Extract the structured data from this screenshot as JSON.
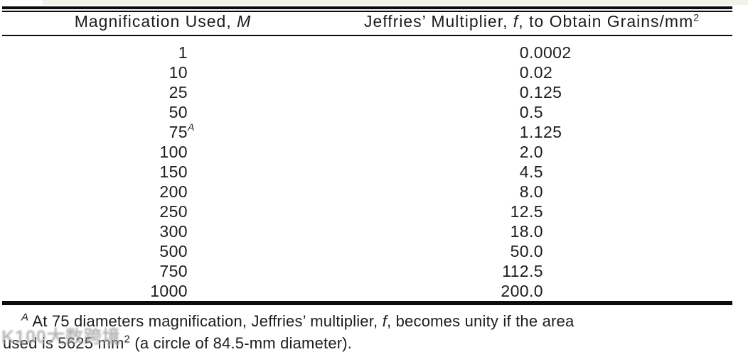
{
  "page": {
    "background": "#ffffff",
    "text_color": "#1c1c1e",
    "rule_color": "#0c0c0c",
    "top_tint_color": "#e7e7d3"
  },
  "table": {
    "header": {
      "col1_segments": [
        {
          "t": "Magnification Used, "
        },
        {
          "t": "M",
          "style": "italic"
        }
      ],
      "col2_segments": [
        {
          "t": "Jeffries’ Multiplier, "
        },
        {
          "t": "f",
          "style": "italic"
        },
        {
          "t": ", to Obtain Grains/mm"
        },
        {
          "t": "2",
          "style": "sup"
        }
      ]
    },
    "rows": [
      {
        "m": "1",
        "m_sup": "",
        "f": "0.0002"
      },
      {
        "m": "10",
        "m_sup": "",
        "f": "0.02"
      },
      {
        "m": "25",
        "m_sup": "",
        "f": "0.125"
      },
      {
        "m": "50",
        "m_sup": "",
        "f": "0.5"
      },
      {
        "m": "75",
        "m_sup": "A",
        "f": "1.125"
      },
      {
        "m": "100",
        "m_sup": "",
        "f": "2.0"
      },
      {
        "m": "150",
        "m_sup": "",
        "f": "4.5"
      },
      {
        "m": "200",
        "m_sup": "",
        "f": "8.0"
      },
      {
        "m": "250",
        "m_sup": "",
        "f": "12.5"
      },
      {
        "m": "300",
        "m_sup": "",
        "f": "18.0"
      },
      {
        "m": "500",
        "m_sup": "",
        "f": "50.0"
      },
      {
        "m": "750",
        "m_sup": "",
        "f": "112.5"
      },
      {
        "m": "1000",
        "m_sup": "",
        "f": "200.0"
      }
    ]
  },
  "footnote": {
    "lines": [
      {
        "segments": [
          {
            "t": "A",
            "style": "sup-italic"
          },
          {
            "t": " At 75 diameters magnification, Jeffries’ multiplier, "
          },
          {
            "t": "f",
            "style": "italic"
          },
          {
            "t": ", becomes unity if the area"
          }
        ]
      },
      {
        "segments": [
          {
            "t": "used is 5625 mm"
          },
          {
            "t": "2",
            "style": "sup"
          },
          {
            "t": " (a circle of 84.5-mm diameter)."
          }
        ]
      }
    ]
  },
  "watermark": {
    "text": "K100大数跨境"
  }
}
